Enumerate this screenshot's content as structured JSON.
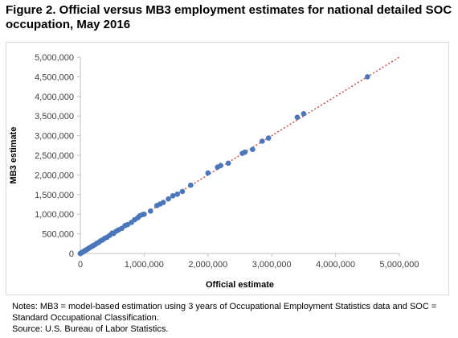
{
  "figure": {
    "title": "Figure 2. Official versus MB3 employment estimates for national detailed SOC occupation, May 2016"
  },
  "notes": {
    "line1": "Notes: MB3 = model-based estimation using 3 years of Occupational Employment Statistics data and SOC = Standard Occupational Classification.",
    "source": "Source: U.S. Bureau of Labor Statistics."
  },
  "colors": {
    "points": "#4a76bc",
    "trendline": "#c0504d",
    "axis": "#bfbfbf"
  },
  "chart_data": {
    "type": "scatter",
    "title": "Figure 2. Official versus MB3 employment estimates for national detailed SOC occupation, May 2016",
    "xlabel": "Official estimate",
    "ylabel": "MB3 estimate",
    "xlim": [
      0,
      5000000
    ],
    "ylim": [
      0,
      5000000
    ],
    "x_ticks": [
      0,
      1000000,
      2000000,
      3000000,
      4000000,
      5000000
    ],
    "y_ticks": [
      0,
      500000,
      1000000,
      1500000,
      2000000,
      2500000,
      3000000,
      3500000,
      4000000,
      4500000,
      5000000
    ],
    "x_tick_labels": [
      "0",
      "1,000,000",
      "2,000,000",
      "3,000,000",
      "4,000,000",
      "5,000,000"
    ],
    "y_tick_labels": [
      "0",
      "500,000",
      "1,000,000",
      "1,500,000",
      "2,000,000",
      "2,500,000",
      "3,000,000",
      "3,500,000",
      "4,000,000",
      "4,500,000",
      "5,000,000"
    ],
    "grid": false,
    "legend": "none",
    "trendline": {
      "style": "dotted",
      "from": [
        0,
        0
      ],
      "to": [
        5000000,
        5000000
      ]
    },
    "series": [
      {
        "points": [
          [
            0,
            0
          ],
          [
            10000,
            12000
          ],
          [
            20000,
            18000
          ],
          [
            30000,
            30000
          ],
          [
            40000,
            42000
          ],
          [
            50000,
            50000
          ],
          [
            60000,
            58000
          ],
          [
            75000,
            78000
          ],
          [
            90000,
            88000
          ],
          [
            100000,
            100000
          ],
          [
            120000,
            118000
          ],
          [
            140000,
            145000
          ],
          [
            160000,
            158000
          ],
          [
            180000,
            182000
          ],
          [
            200000,
            200000
          ],
          [
            230000,
            225000
          ],
          [
            260000,
            262000
          ],
          [
            290000,
            285000
          ],
          [
            320000,
            325000
          ],
          [
            350000,
            348000
          ],
          [
            380000,
            385000
          ],
          [
            420000,
            415000
          ],
          [
            460000,
            462000
          ],
          [
            500000,
            520000
          ],
          [
            520000,
            510000
          ],
          [
            560000,
            565000
          ],
          [
            600000,
            600000
          ],
          [
            650000,
            640000
          ],
          [
            700000,
            710000
          ],
          [
            740000,
            735000
          ],
          [
            800000,
            790000
          ],
          [
            850000,
            860000
          ],
          [
            900000,
            910000
          ],
          [
            930000,
            960000
          ],
          [
            970000,
            990000
          ],
          [
            1000000,
            1000000
          ],
          [
            1100000,
            1080000
          ],
          [
            1200000,
            1220000
          ],
          [
            1250000,
            1260000
          ],
          [
            1300000,
            1300000
          ],
          [
            1380000,
            1390000
          ],
          [
            1450000,
            1470000
          ],
          [
            1520000,
            1510000
          ],
          [
            1600000,
            1580000
          ],
          [
            1730000,
            1740000
          ],
          [
            2000000,
            2050000
          ],
          [
            2150000,
            2200000
          ],
          [
            2200000,
            2240000
          ],
          [
            2320000,
            2300000
          ],
          [
            2540000,
            2550000
          ],
          [
            2580000,
            2580000
          ],
          [
            2700000,
            2650000
          ],
          [
            2850000,
            2860000
          ],
          [
            2950000,
            2940000
          ],
          [
            3400000,
            3470000
          ],
          [
            3500000,
            3560000
          ],
          [
            4500000,
            4500000
          ]
        ]
      }
    ]
  }
}
